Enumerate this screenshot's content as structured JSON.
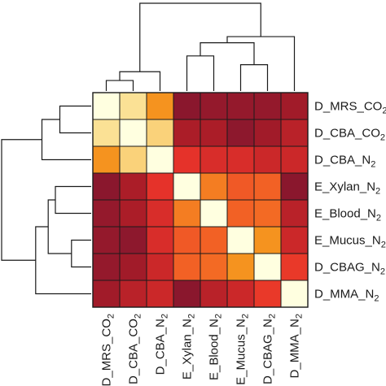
{
  "chart_data": {
    "type": "heatmap",
    "row_labels": [
      {
        "base": "D_MRS_CO",
        "sub": "2"
      },
      {
        "base": "D_CBA_CO",
        "sub": "2"
      },
      {
        "base": "D_CBA_N",
        "sub": "2"
      },
      {
        "base": "E_Xylan_N",
        "sub": "2"
      },
      {
        "base": "E_Blood_N",
        "sub": "2"
      },
      {
        "base": "E_Mucus_N",
        "sub": "2"
      },
      {
        "base": "D_CBAG_N",
        "sub": "2"
      },
      {
        "base": "D_MMA_N",
        "sub": "2"
      }
    ],
    "col_labels": [
      {
        "base": "D_MRS_CO",
        "sub": "2"
      },
      {
        "base": "D_CBA_CO",
        "sub": "2"
      },
      {
        "base": "D_CBA_N",
        "sub": "2"
      },
      {
        "base": "E_Xylan_N",
        "sub": "2"
      },
      {
        "base": "E_Blood_N",
        "sub": "2"
      },
      {
        "base": "E_Mucus_N",
        "sub": "2"
      },
      {
        "base": "D_CBAG_N",
        "sub": "2"
      },
      {
        "base": "D_MMA_N",
        "sub": "2"
      }
    ],
    "values": [
      [
        1.0,
        0.8,
        0.55,
        0.05,
        0.08,
        0.08,
        0.08,
        0.12
      ],
      [
        0.8,
        1.0,
        0.75,
        0.15,
        0.15,
        0.06,
        0.12,
        0.18
      ],
      [
        0.55,
        0.75,
        1.0,
        0.28,
        0.25,
        0.25,
        0.22,
        0.22
      ],
      [
        0.05,
        0.15,
        0.28,
        1.0,
        0.48,
        0.38,
        0.4,
        0.05
      ],
      [
        0.08,
        0.15,
        0.25,
        0.48,
        1.0,
        0.4,
        0.42,
        0.18
      ],
      [
        0.08,
        0.06,
        0.25,
        0.38,
        0.4,
        1.0,
        0.55,
        0.22
      ],
      [
        0.08,
        0.12,
        0.22,
        0.4,
        0.42,
        0.55,
        1.0,
        0.3
      ],
      [
        0.12,
        0.18,
        0.22,
        0.05,
        0.18,
        0.22,
        0.3,
        1.0
      ]
    ],
    "value_range": [
      0,
      1
    ],
    "colormap": [
      "#7a1530",
      "#a81c28",
      "#e8332a",
      "#f46d24",
      "#f59a1e",
      "#f9c766",
      "#fdf2b4",
      "#ffffe0"
    ],
    "row_dendrogram": [
      [
        0,
        1,
        0.35
      ],
      [
        8,
        2,
        0.55
      ],
      [
        5,
        6,
        0.22
      ],
      [
        3,
        4,
        0.4
      ],
      [
        10,
        11,
        0.48
      ],
      [
        12,
        7,
        0.62
      ],
      [
        9,
        13,
        1.0
      ]
    ],
    "col_dendrogram": [
      [
        0,
        1,
        0.12
      ],
      [
        8,
        2,
        0.22
      ],
      [
        5,
        6,
        0.3
      ],
      [
        3,
        4,
        0.4
      ],
      [
        10,
        11,
        0.55
      ],
      [
        12,
        7,
        0.62
      ],
      [
        9,
        13,
        1.0
      ]
    ]
  }
}
